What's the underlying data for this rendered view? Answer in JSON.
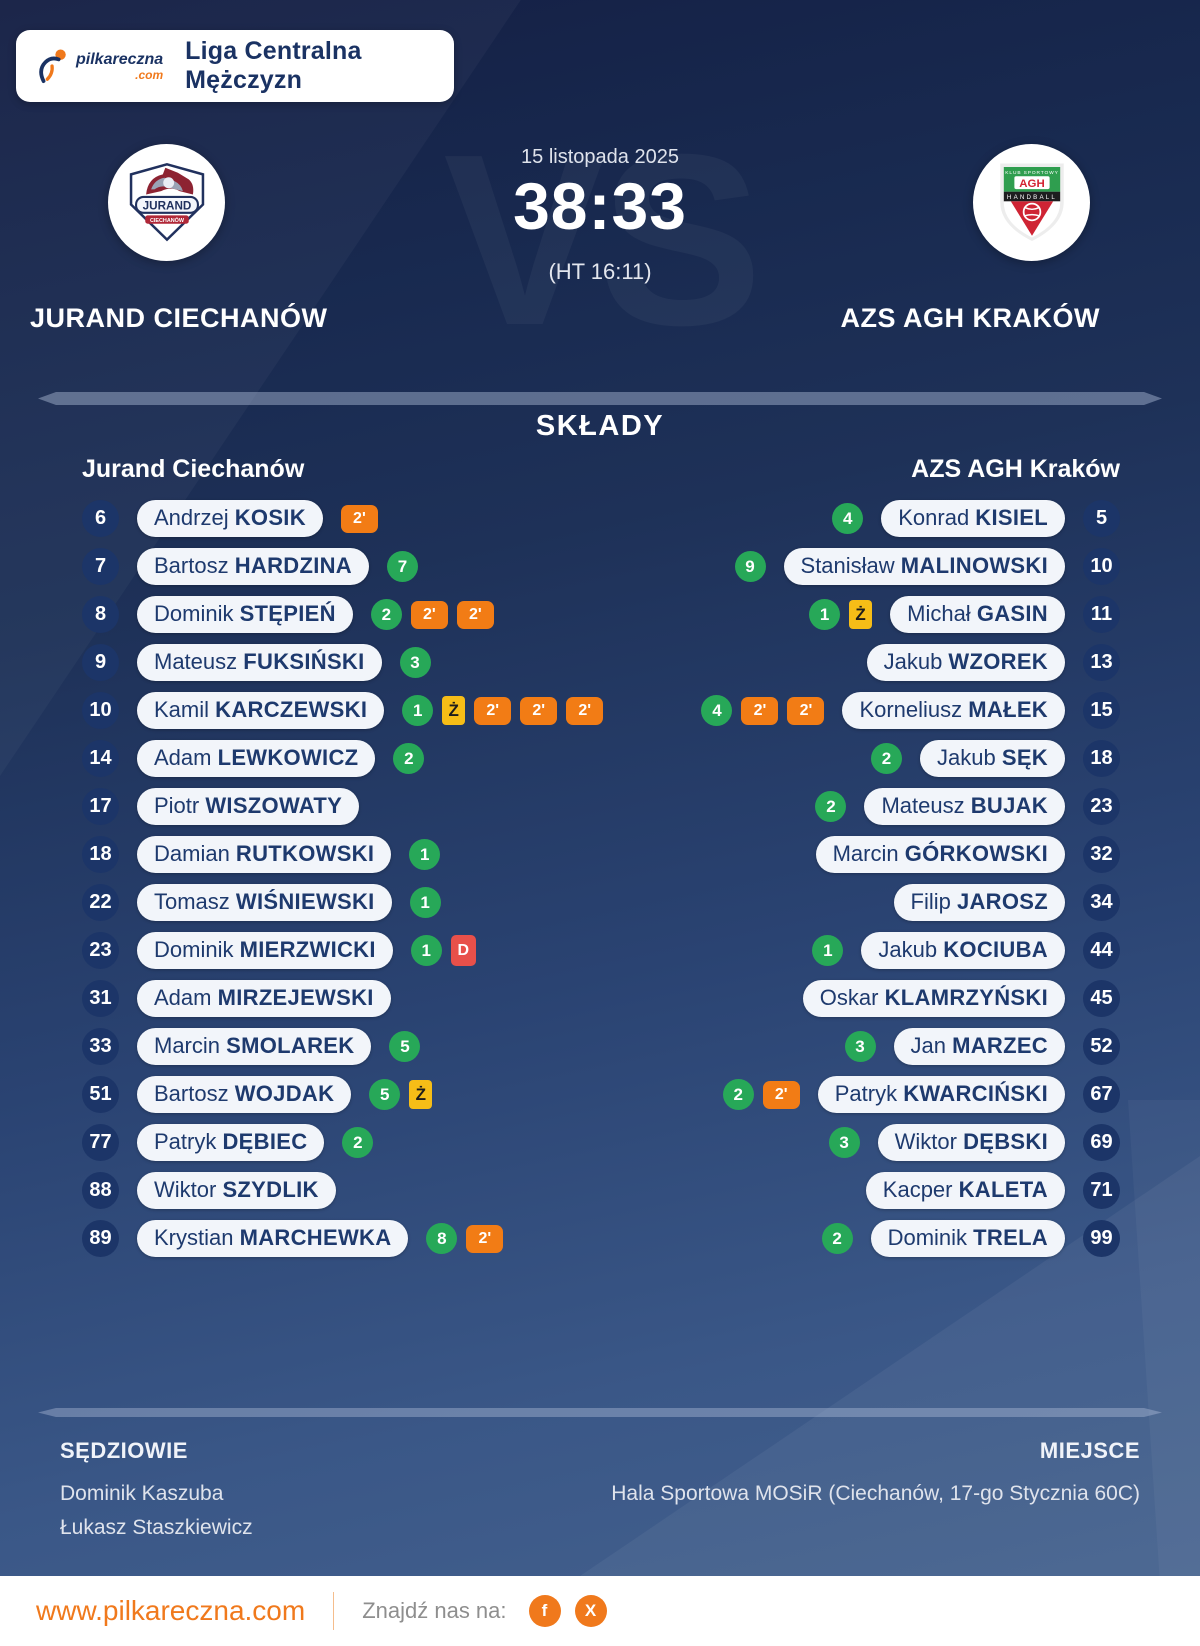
{
  "header": {
    "brand": "pilkareczna",
    "brand_tld": ".com",
    "league": "Liga Centralna Mężczyzn"
  },
  "match": {
    "date": "15 listopada 2025",
    "score": "38:33",
    "halftime": "(HT 16:11)",
    "vs": "VS",
    "home_name": "JURAND CIECHANÓW",
    "away_name": "AZS AGH KRAKÓW"
  },
  "rosters": {
    "title": "SKŁADY",
    "home": {
      "team": "Jurand Ciechanów",
      "players": [
        {
          "number": "6",
          "first": "Andrzej",
          "last": "KOSIK",
          "badges": [
            {
              "t": "susp",
              "v": "2'"
            }
          ]
        },
        {
          "number": "7",
          "first": "Bartosz",
          "last": "HARDZINA",
          "badges": [
            {
              "t": "goals",
              "v": "7"
            }
          ]
        },
        {
          "number": "8",
          "first": "Dominik",
          "last": "STĘPIEŃ",
          "badges": [
            {
              "t": "goals",
              "v": "2"
            },
            {
              "t": "susp",
              "v": "2'"
            },
            {
              "t": "susp",
              "v": "2'"
            }
          ]
        },
        {
          "number": "9",
          "first": "Mateusz",
          "last": "FUKSIŃSKI",
          "badges": [
            {
              "t": "goals",
              "v": "3"
            }
          ]
        },
        {
          "number": "10",
          "first": "Kamil",
          "last": "KARCZEWSKI",
          "badges": [
            {
              "t": "goals",
              "v": "1"
            },
            {
              "t": "yellow",
              "v": "Ż"
            },
            {
              "t": "susp",
              "v": "2'"
            },
            {
              "t": "susp",
              "v": "2'"
            },
            {
              "t": "susp",
              "v": "2'"
            }
          ]
        },
        {
          "number": "14",
          "first": "Adam",
          "last": "LEWKOWICZ",
          "badges": [
            {
              "t": "goals",
              "v": "2"
            }
          ]
        },
        {
          "number": "17",
          "first": "Piotr",
          "last": "WISZOWATY",
          "badges": []
        },
        {
          "number": "18",
          "first": "Damian",
          "last": "RUTKOWSKI",
          "badges": [
            {
              "t": "goals",
              "v": "1"
            }
          ]
        },
        {
          "number": "22",
          "first": "Tomasz",
          "last": "WIŚNIEWSKI",
          "badges": [
            {
              "t": "goals",
              "v": "1"
            }
          ]
        },
        {
          "number": "23",
          "first": "Dominik",
          "last": "MIERZWICKI",
          "badges": [
            {
              "t": "goals",
              "v": "1"
            },
            {
              "t": "red",
              "v": "D"
            }
          ]
        },
        {
          "number": "31",
          "first": "Adam",
          "last": "MIRZEJEWSKI",
          "badges": []
        },
        {
          "number": "33",
          "first": "Marcin",
          "last": "SMOLAREK",
          "badges": [
            {
              "t": "goals",
              "v": "5"
            }
          ]
        },
        {
          "number": "51",
          "first": "Bartosz",
          "last": "WOJDAK",
          "badges": [
            {
              "t": "goals",
              "v": "5"
            },
            {
              "t": "yellow",
              "v": "Ż"
            }
          ]
        },
        {
          "number": "77",
          "first": "Patryk",
          "last": "DĘBIEC",
          "badges": [
            {
              "t": "goals",
              "v": "2"
            }
          ]
        },
        {
          "number": "88",
          "first": "Wiktor",
          "last": "SZYDLIK",
          "badges": []
        },
        {
          "number": "89",
          "first": "Krystian",
          "last": "MARCHEWKA",
          "badges": [
            {
              "t": "goals",
              "v": "8"
            },
            {
              "t": "susp",
              "v": "2'"
            }
          ]
        }
      ]
    },
    "away": {
      "team": "AZS AGH Kraków",
      "players": [
        {
          "number": "5",
          "first": "Konrad",
          "last": "KISIEL",
          "badges": [
            {
              "t": "goals",
              "v": "4"
            }
          ]
        },
        {
          "number": "10",
          "first": "Stanisław",
          "last": "MALINOWSKI",
          "badges": [
            {
              "t": "goals",
              "v": "9"
            }
          ]
        },
        {
          "number": "11",
          "first": "Michał",
          "last": "GASIN",
          "badges": [
            {
              "t": "goals",
              "v": "1"
            },
            {
              "t": "yellow",
              "v": "Ż"
            }
          ]
        },
        {
          "number": "13",
          "first": "Jakub",
          "last": "WZOREK",
          "badges": []
        },
        {
          "number": "15",
          "first": "Korneliusz",
          "last": "MAŁEK",
          "badges": [
            {
              "t": "goals",
              "v": "4"
            },
            {
              "t": "susp",
              "v": "2'"
            },
            {
              "t": "susp",
              "v": "2'"
            }
          ]
        },
        {
          "number": "18",
          "first": "Jakub",
          "last": "SĘK",
          "badges": [
            {
              "t": "goals",
              "v": "2"
            }
          ]
        },
        {
          "number": "23",
          "first": "Mateusz",
          "last": "BUJAK",
          "badges": [
            {
              "t": "goals",
              "v": "2"
            }
          ]
        },
        {
          "number": "32",
          "first": "Marcin",
          "last": "GÓRKOWSKI",
          "badges": []
        },
        {
          "number": "34",
          "first": "Filip",
          "last": "JAROSZ",
          "badges": []
        },
        {
          "number": "44",
          "first": "Jakub",
          "last": "KOCIUBA",
          "badges": [
            {
              "t": "goals",
              "v": "1"
            }
          ]
        },
        {
          "number": "45",
          "first": "Oskar",
          "last": "KLAMRZYŃSKI",
          "badges": []
        },
        {
          "number": "52",
          "first": "Jan",
          "last": "MARZEC",
          "badges": [
            {
              "t": "goals",
              "v": "3"
            }
          ]
        },
        {
          "number": "67",
          "first": "Patryk",
          "last": "KWARCIŃSKI",
          "badges": [
            {
              "t": "goals",
              "v": "2"
            },
            {
              "t": "susp",
              "v": "2'"
            }
          ]
        },
        {
          "number": "69",
          "first": "Wiktor",
          "last": "DĘBSKI",
          "badges": [
            {
              "t": "goals",
              "v": "3"
            }
          ]
        },
        {
          "number": "71",
          "first": "Kacper",
          "last": "KALETA",
          "badges": []
        },
        {
          "number": "99",
          "first": "Dominik",
          "last": "TRELA",
          "badges": [
            {
              "t": "goals",
              "v": "2"
            }
          ]
        }
      ]
    }
  },
  "officials": {
    "title": "SĘDZIOWIE",
    "referees": [
      "Dominik Kaszuba",
      "Łukasz Staszkiewicz"
    ]
  },
  "venue": {
    "title": "MIEJSCE",
    "value": "Hala Sportowa MOSiR (Ciechanów, 17-go Stycznia 60C)"
  },
  "footer": {
    "website": "www.pilkareczna.com",
    "find_us": "Znajdź nas na:",
    "socials": [
      "facebook",
      "x"
    ]
  },
  "colors": {
    "background_top": "#16254e",
    "background_bottom": "#46638f",
    "accent_orange": "#f0791c",
    "goal_green": "#27a858",
    "suspension_orange": "#f27c15",
    "yellow_card": "#f6bd17",
    "red_card": "#e8504a",
    "navy_text": "#1a3263",
    "pill_background": "#f2f5fa"
  }
}
